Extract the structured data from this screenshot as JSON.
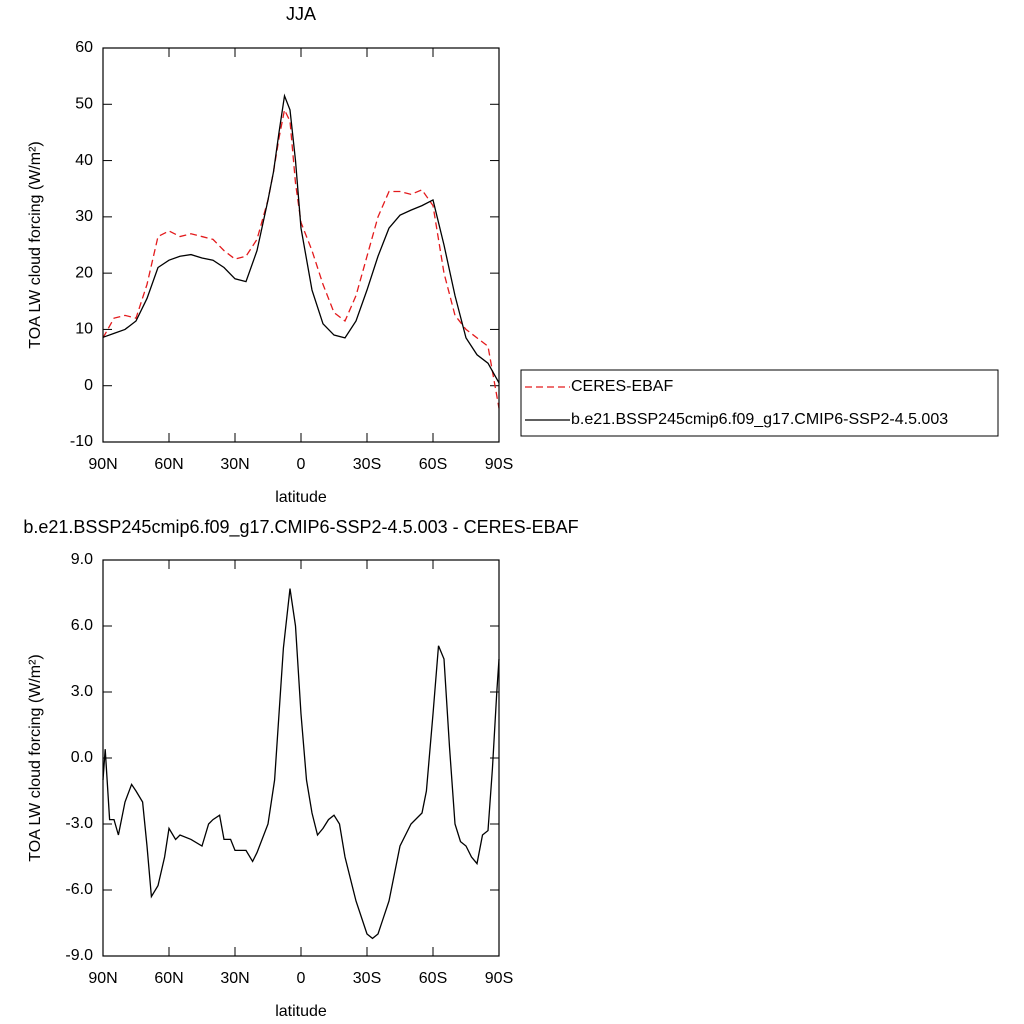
{
  "chart_data": [
    {
      "type": "line",
      "title": "JJA",
      "xlabel": "latitude",
      "ylabel": "TOA LW cloud forcing (W/m²)",
      "x": [
        90,
        85,
        80,
        75,
        70,
        65,
        60,
        55,
        50,
        45,
        40,
        35,
        30,
        25,
        20,
        15,
        12.5,
        10,
        7.5,
        5,
        2.5,
        0,
        -5,
        -10,
        -15,
        -20,
        -25,
        -30,
        -35,
        -40,
        -45,
        -50,
        -55,
        -60,
        -65,
        -70,
        -75,
        -80,
        -85,
        -90
      ],
      "series": [
        {
          "name": "CERES-EBAF",
          "color": "#e31a1c",
          "dash": true,
          "values": [
            8.5,
            12,
            12.5,
            12,
            18,
            26.5,
            27.5,
            26.5,
            27,
            26.5,
            26,
            24,
            22.5,
            23,
            26,
            33,
            38,
            44,
            49,
            47,
            36,
            29,
            24,
            18,
            13,
            11.5,
            16,
            23,
            30,
            34.5,
            34.5,
            34,
            34.8,
            32,
            20,
            12.5,
            10,
            8.5,
            7,
            -4
          ]
        },
        {
          "name": "b.e21.BSSP245cmip6.f09_g17.CMIP6-SSP2-4.5.003",
          "color": "#000000",
          "dash": false,
          "values": [
            8.6,
            9.3,
            10,
            11.5,
            15.5,
            21,
            22.3,
            23,
            23.3,
            22.7,
            22.3,
            21,
            19,
            18.5,
            24,
            33,
            38,
            45,
            51.5,
            49,
            40,
            28,
            17,
            11,
            9,
            8.5,
            11.5,
            17,
            23,
            28,
            30.3,
            31.2,
            32,
            33,
            25,
            16,
            8.5,
            5.5,
            4,
            0.5
          ]
        }
      ],
      "xlim": [
        90,
        -90
      ],
      "xticks": [
        {
          "value": 90,
          "label": "90N"
        },
        {
          "value": 60,
          "label": "60N"
        },
        {
          "value": 30,
          "label": "30N"
        },
        0,
        {
          "value": -30,
          "label": "30S"
        },
        {
          "value": -60,
          "label": "60S"
        },
        {
          "value": -90,
          "label": "90S"
        }
      ],
      "ylim": [
        -10,
        60
      ],
      "yticks": [
        -10,
        0,
        10,
        20,
        30,
        40,
        50,
        60
      ],
      "legend": "right"
    },
    {
      "type": "line",
      "title": "b.e21.BSSP245cmip6.f09_g17.CMIP6-SSP2-4.5.003 - CERES-EBAF",
      "xlabel": "latitude",
      "ylabel": "TOA LW cloud forcing (W/m²)",
      "x": [
        90,
        89,
        87,
        85,
        83,
        80,
        77,
        75,
        72,
        70,
        68,
        65,
        62,
        60,
        57,
        55,
        50,
        45,
        42,
        40,
        37,
        35,
        32,
        30,
        25,
        22,
        20,
        15,
        12,
        10,
        8,
        5,
        2.5,
        0,
        -2.5,
        -5,
        -7.5,
        -10,
        -12.5,
        -15,
        -17.5,
        -20,
        -25,
        -30,
        -32.5,
        -35,
        -40,
        -45,
        -50,
        -55,
        -57,
        -60,
        -62.5,
        -65,
        -67.5,
        -70,
        -72.5,
        -75,
        -77.5,
        -80,
        -82.5,
        -85,
        -87,
        -89,
        -90
      ],
      "series": [
        {
          "color": "#000000",
          "dash": false,
          "values": [
            -1,
            0.4,
            -2.8,
            -2.8,
            -3.5,
            -2,
            -1.2,
            -1.5,
            -2,
            -4,
            -6.3,
            -5.8,
            -4.5,
            -3.2,
            -3.7,
            -3.5,
            -3.7,
            -4,
            -3,
            -2.8,
            -2.6,
            -3.7,
            -3.7,
            -4.2,
            -4.2,
            -4.7,
            -4.3,
            -3,
            -1,
            2,
            5,
            7.7,
            6,
            2,
            -1,
            -2.5,
            -3.5,
            -3.2,
            -2.8,
            -2.6,
            -3,
            -4.5,
            -6.5,
            -8,
            -8.2,
            -8,
            -6.5,
            -4,
            -3,
            -2.5,
            -1.5,
            2,
            5.1,
            4.5,
            0.5,
            -3,
            -3.8,
            -4,
            -4.5,
            -4.8,
            -3.5,
            -3.3,
            -0.5,
            3,
            4.5
          ]
        }
      ],
      "xlim": [
        90,
        -90
      ],
      "xticks": [
        {
          "value": 90,
          "label": "90N"
        },
        {
          "value": 60,
          "label": "60N"
        },
        {
          "value": 30,
          "label": "30N"
        },
        0,
        {
          "value": -30,
          "label": "30S"
        },
        {
          "value": -60,
          "label": "60S"
        },
        {
          "value": -90,
          "label": "90S"
        }
      ],
      "ylim": [
        -9,
        9
      ],
      "yticks": [
        {
          "value": -9,
          "label": "-9.0"
        },
        {
          "value": -6,
          "label": "-6.0"
        },
        {
          "value": -3,
          "label": "-3.0"
        },
        {
          "value": 0,
          "label": "0.0"
        },
        {
          "value": 3,
          "label": "3.0"
        },
        {
          "value": 6,
          "label": "6.0"
        },
        {
          "value": 9,
          "label": "9.0"
        }
      ]
    }
  ]
}
